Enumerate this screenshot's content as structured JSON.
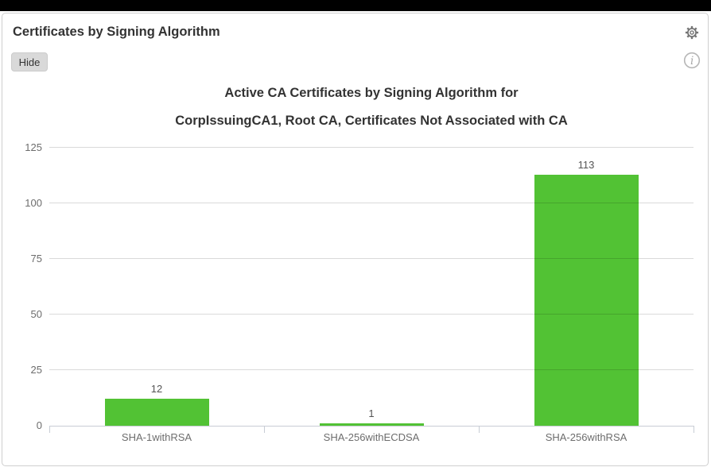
{
  "window": {
    "top_bar_color": "#000000"
  },
  "panel": {
    "title": "Certificates by Signing Algorithm",
    "hide_button_label": "Hide",
    "icons": {
      "settings": "gear-icon",
      "info": "info-icon"
    }
  },
  "chart_data": {
    "type": "bar",
    "title_lines": [
      "Active CA Certificates by Signing Algorithm for",
      "CorpIssuingCA1, Root CA, Certificates Not Associated with CA"
    ],
    "categories": [
      "SHA-1withRSA",
      "SHA-256withECDSA",
      "SHA-256withRSA"
    ],
    "values": [
      12,
      1,
      113
    ],
    "value_labels": [
      "12",
      "1",
      "113"
    ],
    "y_ticks": [
      0,
      25,
      50,
      75,
      100,
      125
    ],
    "ylim": [
      0,
      125
    ],
    "xlabel": "",
    "ylabel": "",
    "grid": true,
    "legend": "none",
    "bar_color": "#52c234",
    "grid_color": "#d6d6d6",
    "axis_color": "#c8cdd5",
    "label_color": "#6d6d6d"
  }
}
